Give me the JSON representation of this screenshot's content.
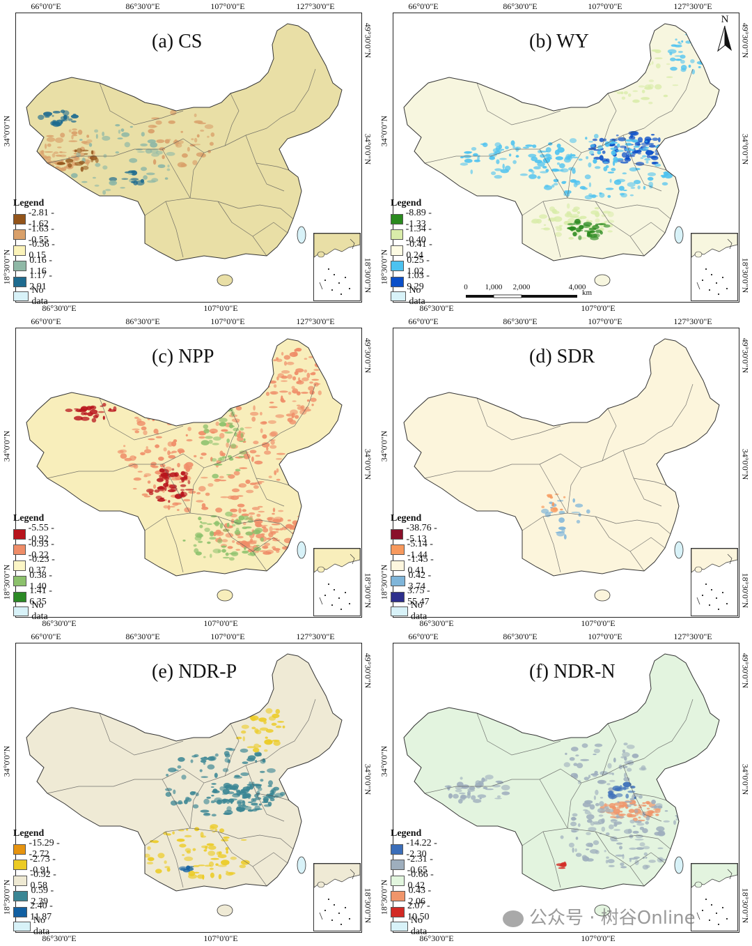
{
  "axes": {
    "top_ticks": [
      "66°0'0\"E",
      "86°30'0\"E",
      "107°0'0\"E",
      "127°30'0\"E"
    ],
    "bottom_ticks": [
      "86°30'0\"E",
      "107°0'0\"E"
    ],
    "left_ticks": [
      "34°0'0\"N",
      "18°30'0\"N"
    ],
    "right_ticks": [
      "49°30'0\"N",
      "34°0'0\"N",
      "18°30'0\"N"
    ]
  },
  "panels": [
    {
      "id": "cs",
      "title": "(a) CS",
      "base_color": "#e9dfa6",
      "legend": {
        "title": "Legend",
        "items": [
          {
            "label": "-2.81 - -1.62",
            "color": "#93541a"
          },
          {
            "label": "-1.63 - -0.55",
            "color": "#d9a06a"
          },
          {
            "label": "-0.56 - 0.15",
            "color": "#fbf3b9"
          },
          {
            "label": "0.16 - 1.16",
            "color": "#8fb8a6"
          },
          {
            "label": "1.17 - 2.91",
            "color": "#1e6b8f"
          }
        ],
        "nodata": {
          "label": "No data",
          "color": "#d8f2f8"
        }
      }
    },
    {
      "id": "wy",
      "title": "(b) WY",
      "base_color": "#f7f6df",
      "legend": {
        "title": "Legend",
        "items": [
          {
            "label": "-8.89 - -1.33",
            "color": "#2a8a1f"
          },
          {
            "label": "-1.34 - -0.40",
            "color": "#d9ecaa"
          },
          {
            "label": "-0.41 - 0.24",
            "color": "#fdfbe3"
          },
          {
            "label": "0.25 - 1.02",
            "color": "#4cc2f0"
          },
          {
            "label": "1.03 - 9.29",
            "color": "#0b4fc8"
          }
        ],
        "nodata": {
          "label": "No data",
          "color": "#d8f2f8"
        }
      },
      "scalebar": {
        "ticks": [
          "0",
          "1,000",
          "2,000",
          "4,000"
        ],
        "unit": "km"
      },
      "north_label": "N"
    },
    {
      "id": "npp",
      "title": "(c) NPP",
      "base_color": "#f8eebb",
      "legend": {
        "title": "Legend",
        "items": [
          {
            "label": "-5.55 - -0.92",
            "color": "#b8141c"
          },
          {
            "label": "-0.93 - -0.22",
            "color": "#ef8d68"
          },
          {
            "label": "-0.23 - 0.37",
            "color": "#fcf6c6"
          },
          {
            "label": "0.38 - 1.40",
            "color": "#8cc16c"
          },
          {
            "label": "1.41 - 6.35",
            "color": "#2b8a25"
          }
        ],
        "nodata": {
          "label": "No data",
          "color": "#d8f2f8"
        }
      }
    },
    {
      "id": "sdr",
      "title": "(d) SDR",
      "base_color": "#fcf5dc",
      "legend": {
        "title": "Legend",
        "items": [
          {
            "label": "-38.76 - -5.13",
            "color": "#8a0f2a"
          },
          {
            "label": "-5.14 - -1.44",
            "color": "#f7995d"
          },
          {
            "label": "-1.45 - 0.41",
            "color": "#fdf6de"
          },
          {
            "label": "0.42 - 3.74",
            "color": "#7fb5d9"
          },
          {
            "label": "3.75 - 55.47",
            "color": "#2d2f8c"
          }
        ],
        "nodata": {
          "label": "No data",
          "color": "#d8f2f8"
        }
      }
    },
    {
      "id": "ndrp",
      "title": "(e) NDR-P",
      "base_color": "#efead5",
      "legend": {
        "title": "Legend",
        "items": [
          {
            "label": "-15.29 - -2.72",
            "color": "#e6930f"
          },
          {
            "label": "-2.73 - -0.91",
            "color": "#eccb24"
          },
          {
            "label": "-0.92 - 0.58",
            "color": "#eee9d3"
          },
          {
            "label": "0.59 - 2.39",
            "color": "#3b8694"
          },
          {
            "label": "2.40 - 11.87",
            "color": "#1260a2"
          }
        ],
        "nodata": {
          "label": "No data",
          "color": "#d8f2f8"
        }
      }
    },
    {
      "id": "ndrn",
      "title": "(f) NDR-N",
      "base_color": "#e3f4df",
      "legend": {
        "title": "Legend",
        "items": [
          {
            "label": "-14.22 - -2.30",
            "color": "#3b6eb9"
          },
          {
            "label": "-2.31 - -0.65",
            "color": "#9eaebd"
          },
          {
            "label": "-0.66 - 0.42",
            "color": "#e2f6de"
          },
          {
            "label": "0.43 - 2.06",
            "color": "#f0956a"
          },
          {
            "label": "2.07 - 10.50",
            "color": "#d22a24"
          }
        ],
        "nodata": {
          "label": "No data",
          "color": "#d8f2f8"
        }
      }
    }
  ],
  "watermark": "公众号 · 树谷Online",
  "icons": {
    "north": "north-arrow-icon",
    "watermark": "wechat-icon"
  }
}
